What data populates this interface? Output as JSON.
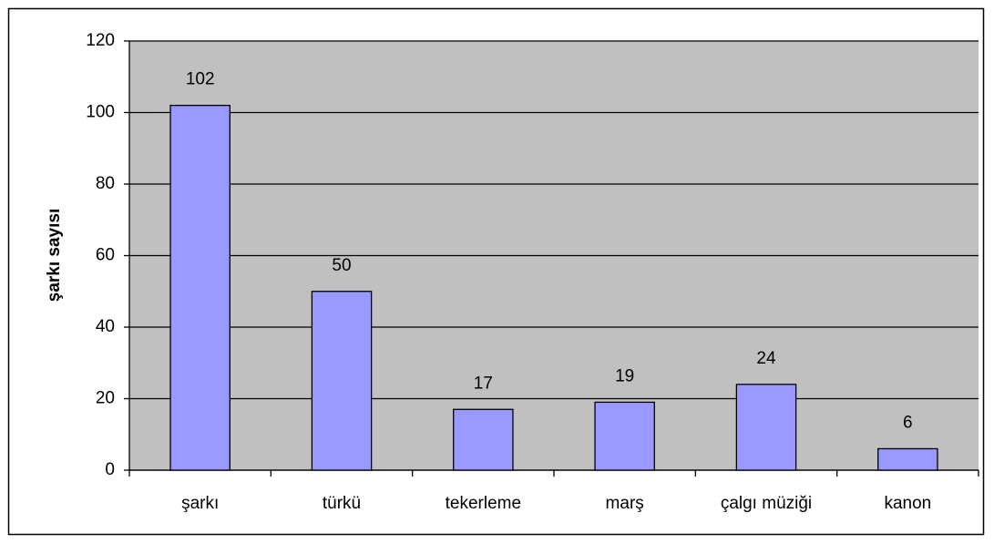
{
  "chart_data": {
    "type": "bar",
    "y_label": "şarkı sayısı",
    "categories": [
      "şarkı",
      "türkü",
      "tekerleme",
      "marş",
      "çalgı müziği",
      "kanon"
    ],
    "values": [
      102,
      50,
      17,
      19,
      24,
      6
    ],
    "color": "#9999ff",
    "plot_background": "#c0c0c0",
    "ylim": [
      0,
      120
    ],
    "yticks": [
      0,
      20,
      40,
      60,
      80,
      100,
      120
    ],
    "grid": true
  }
}
